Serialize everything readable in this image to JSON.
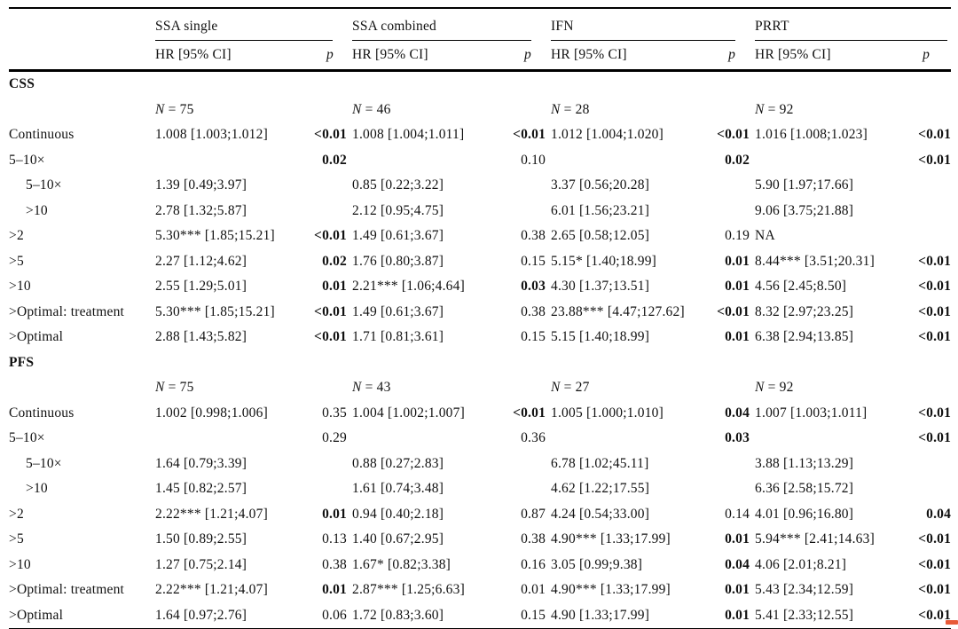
{
  "page": {
    "background": "#ffffff",
    "text_color": "#111111",
    "rule_color": "#000000",
    "artifact_color": "#e85a38"
  },
  "header": {
    "groups": [
      {
        "label": "SSA single"
      },
      {
        "label": "SSA combined"
      },
      {
        "label": "IFN"
      },
      {
        "label": "PRRT"
      }
    ],
    "hr_ci_label": "HR [95% CI]",
    "p_label": "p"
  },
  "n_symbol": "N",
  "sections": [
    {
      "title": "CSS",
      "n_values": [
        "75",
        "46",
        "28",
        "92"
      ],
      "rows": [
        {
          "label": "Continuous",
          "indent": 0,
          "cells": [
            {
              "hr": "1.008 [1.003;1.012]",
              "p": "<0.01",
              "p_bold": true
            },
            {
              "hr": "1.008 [1.004;1.011]",
              "p": "<0.01",
              "p_bold": true
            },
            {
              "hr": "1.012 [1.004;1.020]",
              "p": "<0.01",
              "p_bold": true
            },
            {
              "hr": "1.016 [1.008;1.023]",
              "p": "<0.01",
              "p_bold": true
            }
          ]
        },
        {
          "label": "5–10×",
          "indent": 0,
          "cells": [
            {
              "hr": "",
              "p": "0.02",
              "p_bold": true
            },
            {
              "hr": "",
              "p": "0.10",
              "p_bold": false
            },
            {
              "hr": "",
              "p": "0.02",
              "p_bold": true
            },
            {
              "hr": "",
              "p": "<0.01",
              "p_bold": true
            }
          ]
        },
        {
          "label": "5–10×",
          "indent": 1,
          "cells": [
            {
              "hr": "1.39 [0.49;3.97]",
              "p": "",
              "p_bold": false
            },
            {
              "hr": "0.85 [0.22;3.22]",
              "p": "",
              "p_bold": false
            },
            {
              "hr": "3.37 [0.56;20.28]",
              "p": "",
              "p_bold": false
            },
            {
              "hr": "5.90 [1.97;17.66]",
              "p": "",
              "p_bold": false
            }
          ]
        },
        {
          "label": ">10",
          "indent": 1,
          "cells": [
            {
              "hr": "2.78 [1.32;5.87]",
              "p": "",
              "p_bold": false
            },
            {
              "hr": "2.12 [0.95;4.75]",
              "p": "",
              "p_bold": false
            },
            {
              "hr": "6.01 [1.56;23.21]",
              "p": "",
              "p_bold": false
            },
            {
              "hr": "9.06 [3.75;21.88]",
              "p": "",
              "p_bold": false
            }
          ]
        },
        {
          "label": ">2",
          "indent": 0,
          "cells": [
            {
              "hr": "5.30*** [1.85;15.21]",
              "p": "<0.01",
              "p_bold": true
            },
            {
              "hr": "1.49 [0.61;3.67]",
              "p": "0.38",
              "p_bold": false
            },
            {
              "hr": "2.65 [0.58;12.05]",
              "p": "0.19",
              "p_bold": false
            },
            {
              "hr": "NA",
              "p": "",
              "p_bold": false
            }
          ]
        },
        {
          "label": ">5",
          "indent": 0,
          "cells": [
            {
              "hr": "2.27 [1.12;4.62]",
              "p": "0.02",
              "p_bold": true
            },
            {
              "hr": "1.76 [0.80;3.87]",
              "p": "0.15",
              "p_bold": false
            },
            {
              "hr": "5.15* [1.40;18.99]",
              "p": "0.01",
              "p_bold": true
            },
            {
              "hr": "8.44*** [3.51;20.31]",
              "p": "<0.01",
              "p_bold": true
            }
          ]
        },
        {
          "label": ">10",
          "indent": 0,
          "cells": [
            {
              "hr": "2.55 [1.29;5.01]",
              "p": "0.01",
              "p_bold": true
            },
            {
              "hr": "2.21*** [1.06;4.64]",
              "p": "0.03",
              "p_bold": true
            },
            {
              "hr": "4.30 [1.37;13.51]",
              "p": "0.01",
              "p_bold": true
            },
            {
              "hr": "4.56 [2.45;8.50]",
              "p": "<0.01",
              "p_bold": true
            }
          ]
        },
        {
          "label": ">Optimal: treatment",
          "indent": 0,
          "cells": [
            {
              "hr": "5.30*** [1.85;15.21]",
              "p": "<0.01",
              "p_bold": true
            },
            {
              "hr": "1.49 [0.61;3.67]",
              "p": "0.38",
              "p_bold": false
            },
            {
              "hr": "23.88*** [4.47;127.62]",
              "p": "<0.01",
              "p_bold": true
            },
            {
              "hr": "8.32 [2.97;23.25]",
              "p": "<0.01",
              "p_bold": true
            }
          ]
        },
        {
          "label": ">Optimal",
          "indent": 0,
          "cells": [
            {
              "hr": "2.88 [1.43;5.82]",
              "p": "<0.01",
              "p_bold": true
            },
            {
              "hr": "1.71 [0.81;3.61]",
              "p": "0.15",
              "p_bold": false
            },
            {
              "hr": "5.15 [1.40;18.99]",
              "p": "0.01",
              "p_bold": true
            },
            {
              "hr": "6.38 [2.94;13.85]",
              "p": "<0.01",
              "p_bold": true
            }
          ]
        }
      ]
    },
    {
      "title": "PFS",
      "n_values": [
        "75",
        "43",
        "27",
        "92"
      ],
      "rows": [
        {
          "label": "Continuous",
          "indent": 0,
          "cells": [
            {
              "hr": "1.002 [0.998;1.006]",
              "p": "0.35",
              "p_bold": false
            },
            {
              "hr": "1.004 [1.002;1.007]",
              "p": "<0.01",
              "p_bold": true
            },
            {
              "hr": "1.005 [1.000;1.010]",
              "p": "0.04",
              "p_bold": true
            },
            {
              "hr": "1.007 [1.003;1.011]",
              "p": "<0.01",
              "p_bold": true
            }
          ]
        },
        {
          "label": "5–10×",
          "indent": 0,
          "cells": [
            {
              "hr": "",
              "p": "0.29",
              "p_bold": false
            },
            {
              "hr": "",
              "p": "0.36",
              "p_bold": false
            },
            {
              "hr": "",
              "p": "0.03",
              "p_bold": true
            },
            {
              "hr": "",
              "p": "<0.01",
              "p_bold": true
            }
          ]
        },
        {
          "label": "5–10×",
          "indent": 1,
          "cells": [
            {
              "hr": "1.64 [0.79;3.39]",
              "p": "",
              "p_bold": false
            },
            {
              "hr": "0.88 [0.27;2.83]",
              "p": "",
              "p_bold": false
            },
            {
              "hr": "6.78 [1.02;45.11]",
              "p": "",
              "p_bold": false
            },
            {
              "hr": "3.88 [1.13;13.29]",
              "p": "",
              "p_bold": false
            }
          ]
        },
        {
          "label": ">10",
          "indent": 1,
          "cells": [
            {
              "hr": "1.45 [0.82;2.57]",
              "p": "",
              "p_bold": false
            },
            {
              "hr": "1.61 [0.74;3.48]",
              "p": "",
              "p_bold": false
            },
            {
              "hr": "4.62 [1.22;17.55]",
              "p": "",
              "p_bold": false
            },
            {
              "hr": "6.36 [2.58;15.72]",
              "p": "",
              "p_bold": false
            }
          ]
        },
        {
          "label": ">2",
          "indent": 0,
          "cells": [
            {
              "hr": "2.22*** [1.21;4.07]",
              "p": "0.01",
              "p_bold": true
            },
            {
              "hr": "0.94 [0.40;2.18]",
              "p": "0.87",
              "p_bold": false
            },
            {
              "hr": "4.24 [0.54;33.00]",
              "p": "0.14",
              "p_bold": false
            },
            {
              "hr": "4.01 [0.96;16.80]",
              "p": "0.04",
              "p_bold": true
            }
          ]
        },
        {
          "label": ">5",
          "indent": 0,
          "cells": [
            {
              "hr": "1.50 [0.89;2.55]",
              "p": "0.13",
              "p_bold": false
            },
            {
              "hr": "1.40 [0.67;2.95]",
              "p": "0.38",
              "p_bold": false
            },
            {
              "hr": "4.90*** [1.33;17.99]",
              "p": "0.01",
              "p_bold": true
            },
            {
              "hr": "5.94*** [2.41;14.63]",
              "p": "<0.01",
              "p_bold": true
            }
          ]
        },
        {
          "label": ">10",
          "indent": 0,
          "cells": [
            {
              "hr": "1.27 [0.75;2.14]",
              "p": "0.38",
              "p_bold": false
            },
            {
              "hr": "1.67* [0.82;3.38]",
              "p": "0.16",
              "p_bold": false
            },
            {
              "hr": "3.05 [0.99;9.38]",
              "p": "0.04",
              "p_bold": true
            },
            {
              "hr": "4.06 [2.01;8.21]",
              "p": "<0.01",
              "p_bold": true
            }
          ]
        },
        {
          "label": ">Optimal: treatment",
          "indent": 0,
          "cells": [
            {
              "hr": "2.22*** [1.21;4.07]",
              "p": "0.01",
              "p_bold": true
            },
            {
              "hr": "2.87*** [1.25;6.63]",
              "p": "0.01",
              "p_bold": false
            },
            {
              "hr": "4.90*** [1.33;17.99]",
              "p": "0.01",
              "p_bold": true
            },
            {
              "hr": "5.43 [2.34;12.59]",
              "p": "<0.01",
              "p_bold": true
            }
          ]
        },
        {
          "label": ">Optimal",
          "indent": 0,
          "cells": [
            {
              "hr": "1.64 [0.97;2.76]",
              "p": "0.06",
              "p_bold": false
            },
            {
              "hr": "1.72 [0.83;3.60]",
              "p": "0.15",
              "p_bold": false
            },
            {
              "hr": "4.90 [1.33;17.99]",
              "p": "0.01",
              "p_bold": true
            },
            {
              "hr": "5.41 [2.33;12.55]",
              "p": "<0.01",
              "p_bold": true
            }
          ]
        }
      ]
    }
  ]
}
